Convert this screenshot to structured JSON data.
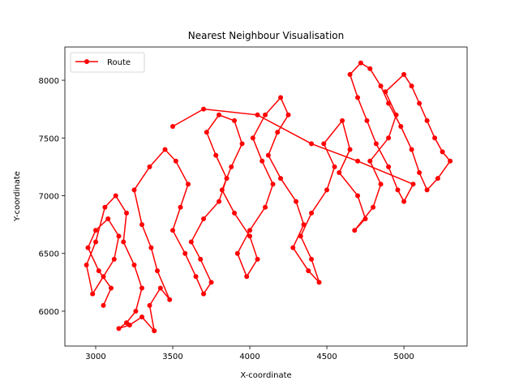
{
  "chart_data": {
    "type": "line",
    "title": "Nearest Neighbour Visualisation",
    "x_label": "X-coordinate",
    "y_label": "Y-coordinate",
    "xlim": [
      2800,
      5410
    ],
    "ylim": [
      5698,
      8288
    ],
    "xticks": [
      3000,
      3500,
      4000,
      4500,
      5000
    ],
    "yticks": [
      6000,
      6500,
      7000,
      7500,
      8000
    ],
    "legend": "upper left",
    "series": [
      {
        "name": "Route",
        "color": "#ff0000",
        "x": [
          3050,
          3100,
          3020,
          2950,
          3000,
          3080,
          3150,
          3120,
          3050,
          2980,
          2940,
          3000,
          3060,
          3130,
          3200,
          3180,
          3250,
          3300,
          3260,
          3200,
          3150,
          3220,
          3300,
          3380,
          3350,
          3420,
          3480,
          3400,
          3360,
          3300,
          3250,
          3350,
          3450,
          3520,
          3600,
          3550,
          3500,
          3580,
          3650,
          3700,
          3750,
          3680,
          3620,
          3700,
          3800,
          3850,
          3780,
          3720,
          3800,
          3900,
          3950,
          3880,
          3820,
          3900,
          4000,
          4050,
          3980,
          3920,
          4000,
          4100,
          4150,
          4080,
          4020,
          4100,
          4200,
          4250,
          4180,
          4120,
          4200,
          4300,
          4350,
          4280,
          4380,
          4450,
          4400,
          4330,
          4400,
          4500,
          4550,
          4480,
          4600,
          4650,
          4580,
          4700,
          4750,
          4680,
          4800,
          4850,
          4780,
          4900,
          4950,
          4880,
          5000,
          5050,
          5100,
          5150,
          5200,
          5250,
          5300,
          5220,
          5150,
          5100,
          5050,
          4980,
          4900,
          4850,
          4780,
          4720,
          4650,
          4700,
          4760,
          4820,
          4900,
          4960,
          5000,
          5060,
          4700,
          4400,
          4050,
          3700,
          3500
        ],
        "values": [
          6050,
          6200,
          6350,
          6550,
          6700,
          6800,
          6650,
          6450,
          6300,
          6150,
          6400,
          6600,
          6900,
          7000,
          6850,
          6600,
          6400,
          6200,
          6000,
          5900,
          5850,
          5880,
          5950,
          5830,
          6050,
          6200,
          6100,
          6350,
          6550,
          6750,
          7050,
          7250,
          7400,
          7300,
          7100,
          6900,
          6700,
          6500,
          6300,
          6150,
          6250,
          6450,
          6600,
          6800,
          6950,
          7150,
          7350,
          7550,
          7700,
          7650,
          7450,
          7250,
          7050,
          6850,
          6650,
          6450,
          6300,
          6500,
          6700,
          6900,
          7100,
          7300,
          7500,
          7700,
          7850,
          7700,
          7550,
          7350,
          7150,
          6950,
          6750,
          6550,
          6350,
          6250,
          6450,
          6650,
          6850,
          7050,
          7250,
          7450,
          7650,
          7400,
          7200,
          7000,
          6800,
          6700,
          6900,
          7100,
          7300,
          7500,
          7700,
          7900,
          8050,
          7950,
          7800,
          7650,
          7500,
          7380,
          7300,
          7150,
          7050,
          7200,
          7400,
          7600,
          7800,
          7950,
          8100,
          8150,
          8050,
          7850,
          7650,
          7450,
          7250,
          7050,
          6950,
          7100,
          7300,
          7450,
          7700,
          7750,
          7600
        ]
      }
    ]
  }
}
